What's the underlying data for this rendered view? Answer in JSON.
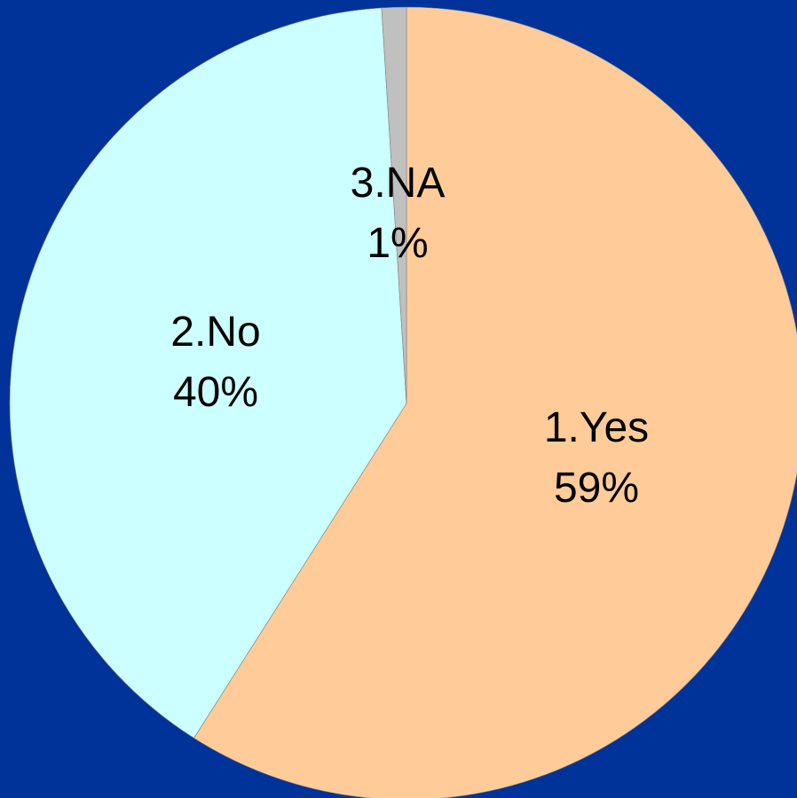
{
  "chart_data": {
    "type": "pie",
    "start": "12 o'clock",
    "direction": "clockwise",
    "background": "#003399",
    "slices": [
      {
        "category": "1.Yes",
        "value": 59,
        "value_label": "59%",
        "color": "#FFCC99"
      },
      {
        "category": "2.No",
        "value": 40,
        "value_label": "40%",
        "color": "#CCFFFF"
      },
      {
        "category": "3.NA",
        "value": 1,
        "value_label": "1%",
        "color": "#C0C0C0"
      }
    ]
  }
}
